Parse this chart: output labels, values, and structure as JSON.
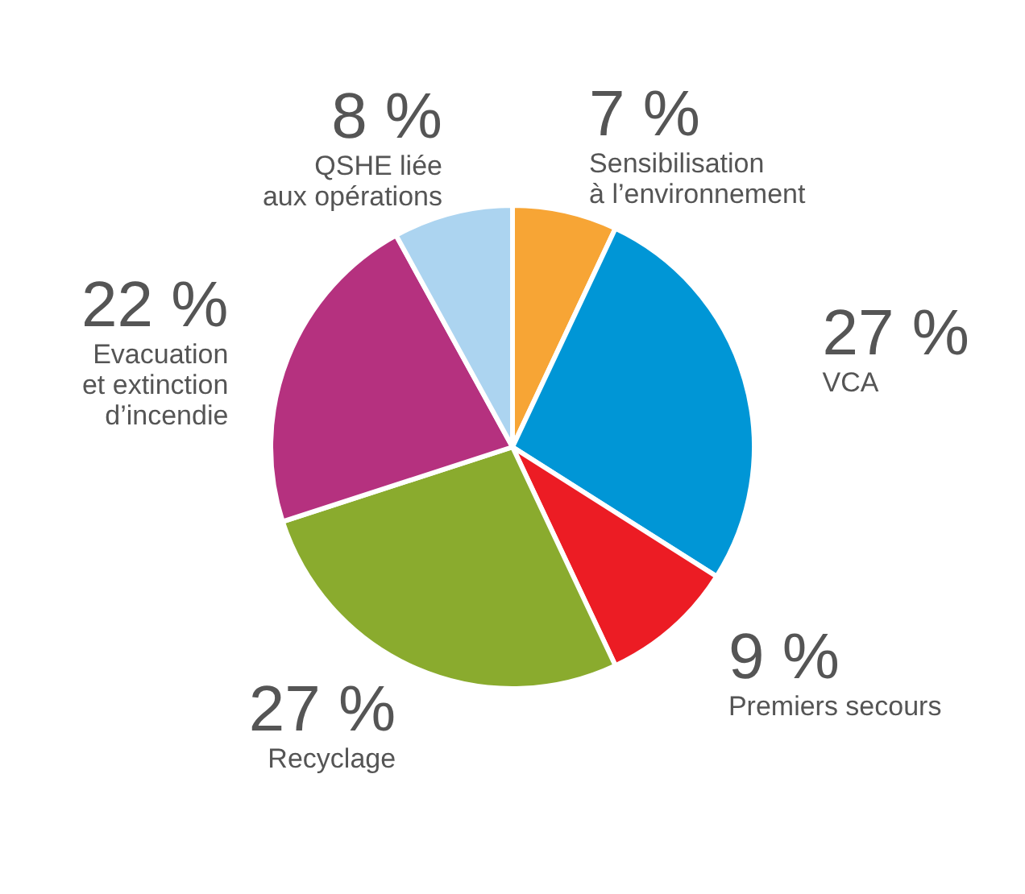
{
  "chart_data": {
    "type": "pie",
    "categories": [
      "Sensibilisation\nà l’environnement",
      "VCA",
      "Premiers secours",
      "Recyclage",
      "Evacuation\net extinction\nd’incendie",
      "QSHE liée\naux opérations"
    ],
    "values": [
      7,
      27,
      9,
      27,
      22,
      8
    ],
    "value_labels": [
      "7 %",
      "27 %",
      "9 %",
      "27 %",
      "22 %",
      "8 %"
    ],
    "colors": [
      "#f7a535",
      "#0096d6",
      "#ec1c24",
      "#8aab2e",
      "#b5317f",
      "#acd4f0"
    ],
    "legend": false
  }
}
